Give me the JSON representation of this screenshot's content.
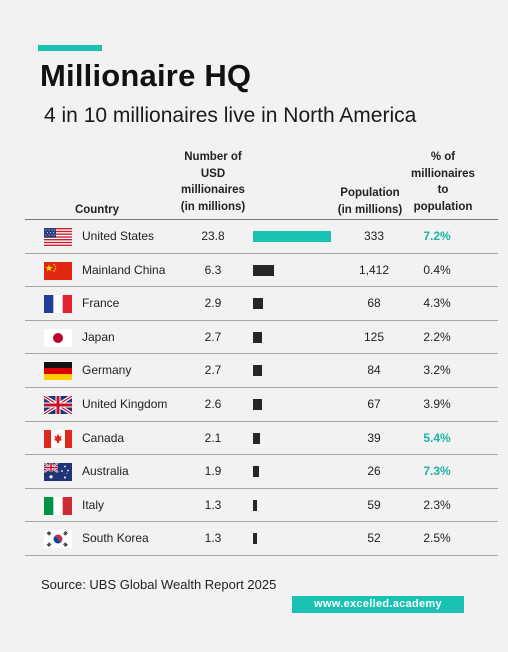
{
  "title": "Millionaire HQ",
  "subtitle": "4 in 10 millionaires live in North America",
  "headers": {
    "country": "Country",
    "millionaires": "Number of\nUSD\nmillionaires\n(in millions)",
    "population": "Population\n(in millions)",
    "pct": "% of\nmillionaires\nto\npopulation"
  },
  "colors": {
    "accent": "#19c2b3",
    "bar_top": "#19c2b3",
    "bar_default": "#262626",
    "highlight_text": "#19b5a8"
  },
  "chart_data": {
    "type": "table",
    "columns": [
      "Country",
      "Number of USD millionaires (in millions)",
      "Population (in millions)",
      "% of millionaires to population"
    ],
    "bar_column": "Number of USD millionaires (in millions)",
    "bar_max": 23.8,
    "rows": [
      {
        "flag": "us-flag-icon",
        "country": "United States",
        "millionaires": 23.8,
        "millionaires_text": "23.8",
        "population": "333",
        "pct": "7.2%",
        "highlight": true
      },
      {
        "flag": "china-flag-icon",
        "country": "Mainland China",
        "millionaires": 6.3,
        "millionaires_text": "6.3",
        "population": "1,412",
        "pct": "0.4%",
        "highlight": false
      },
      {
        "flag": "france-flag-icon",
        "country": "France",
        "millionaires": 2.9,
        "millionaires_text": "2.9",
        "population": "68",
        "pct": "4.3%",
        "highlight": false
      },
      {
        "flag": "japan-flag-icon",
        "country": "Japan",
        "millionaires": 2.7,
        "millionaires_text": "2.7",
        "population": "125",
        "pct": "2.2%",
        "highlight": false
      },
      {
        "flag": "germany-flag-icon",
        "country": "Germany",
        "millionaires": 2.7,
        "millionaires_text": "2.7",
        "population": "84",
        "pct": "3.2%",
        "highlight": false
      },
      {
        "flag": "uk-flag-icon",
        "country": "United Kingdom",
        "millionaires": 2.6,
        "millionaires_text": "2.6",
        "population": "67",
        "pct": "3.9%",
        "highlight": false
      },
      {
        "flag": "canada-flag-icon",
        "country": "Canada",
        "millionaires": 2.1,
        "millionaires_text": "2.1",
        "population": "39",
        "pct": "5.4%",
        "highlight": true
      },
      {
        "flag": "australia-flag-icon",
        "country": "Australia",
        "millionaires": 1.9,
        "millionaires_text": "1.9",
        "population": "26",
        "pct": "7.3%",
        "highlight": true
      },
      {
        "flag": "italy-flag-icon",
        "country": "Italy",
        "millionaires": 1.3,
        "millionaires_text": "1.3",
        "population": "59",
        "pct": "2.3%",
        "highlight": false
      },
      {
        "flag": "south-korea-flag-icon",
        "country": "South Korea",
        "millionaires": 1.3,
        "millionaires_text": "1.3",
        "population": "52",
        "pct": "2.5%",
        "highlight": false
      }
    ]
  },
  "source": "Source: UBS Global Wealth Report 2025",
  "website": "www.excelled.academy"
}
